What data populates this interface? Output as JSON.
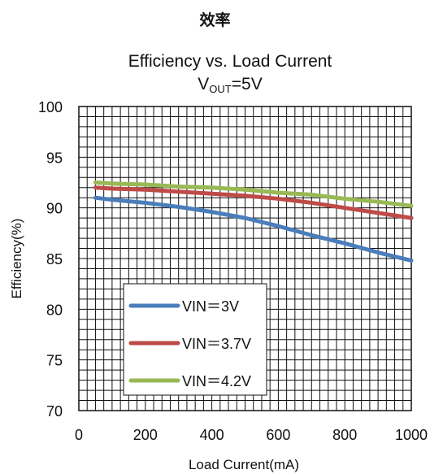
{
  "page_heading": "效率",
  "chart_data": {
    "type": "line",
    "title": "Efficiency vs. Load Current",
    "subtitle": {
      "prefix": "V",
      "subscript": "OUT",
      "suffix": "=5V"
    },
    "xlabel": "Load Current(mA)",
    "ylabel": "Efficiency(%)",
    "xlim": [
      0,
      1000
    ],
    "ylim": [
      70,
      100
    ],
    "xticks": [
      "0",
      "200",
      "400",
      "600",
      "800",
      "1000"
    ],
    "yticks": [
      "70",
      "75",
      "80",
      "85",
      "90",
      "95",
      "100"
    ],
    "grid": true,
    "legend_position": "bottom-left inside",
    "series": [
      {
        "name": "VIN＝3V",
        "color": "#4a7ebb",
        "x": [
          50,
          100,
          200,
          300,
          400,
          500,
          600,
          700,
          800,
          900,
          1000
        ],
        "y": [
          91.0,
          90.8,
          90.5,
          90.1,
          89.6,
          89.0,
          88.2,
          87.3,
          86.5,
          85.6,
          84.8
        ]
      },
      {
        "name": "VIN＝3.7V",
        "color": "#be4b48",
        "x": [
          50,
          100,
          200,
          300,
          400,
          500,
          600,
          700,
          800,
          900,
          1000
        ],
        "y": [
          92.0,
          91.9,
          91.8,
          91.6,
          91.4,
          91.2,
          90.9,
          90.5,
          90.0,
          89.5,
          89.0
        ]
      },
      {
        "name": "VIN＝4.2V",
        "color": "#98b954",
        "x": [
          50,
          100,
          200,
          300,
          400,
          500,
          600,
          700,
          800,
          900,
          1000
        ],
        "y": [
          92.5,
          92.4,
          92.3,
          92.1,
          92.0,
          91.8,
          91.5,
          91.3,
          90.9,
          90.6,
          90.2
        ]
      }
    ]
  }
}
